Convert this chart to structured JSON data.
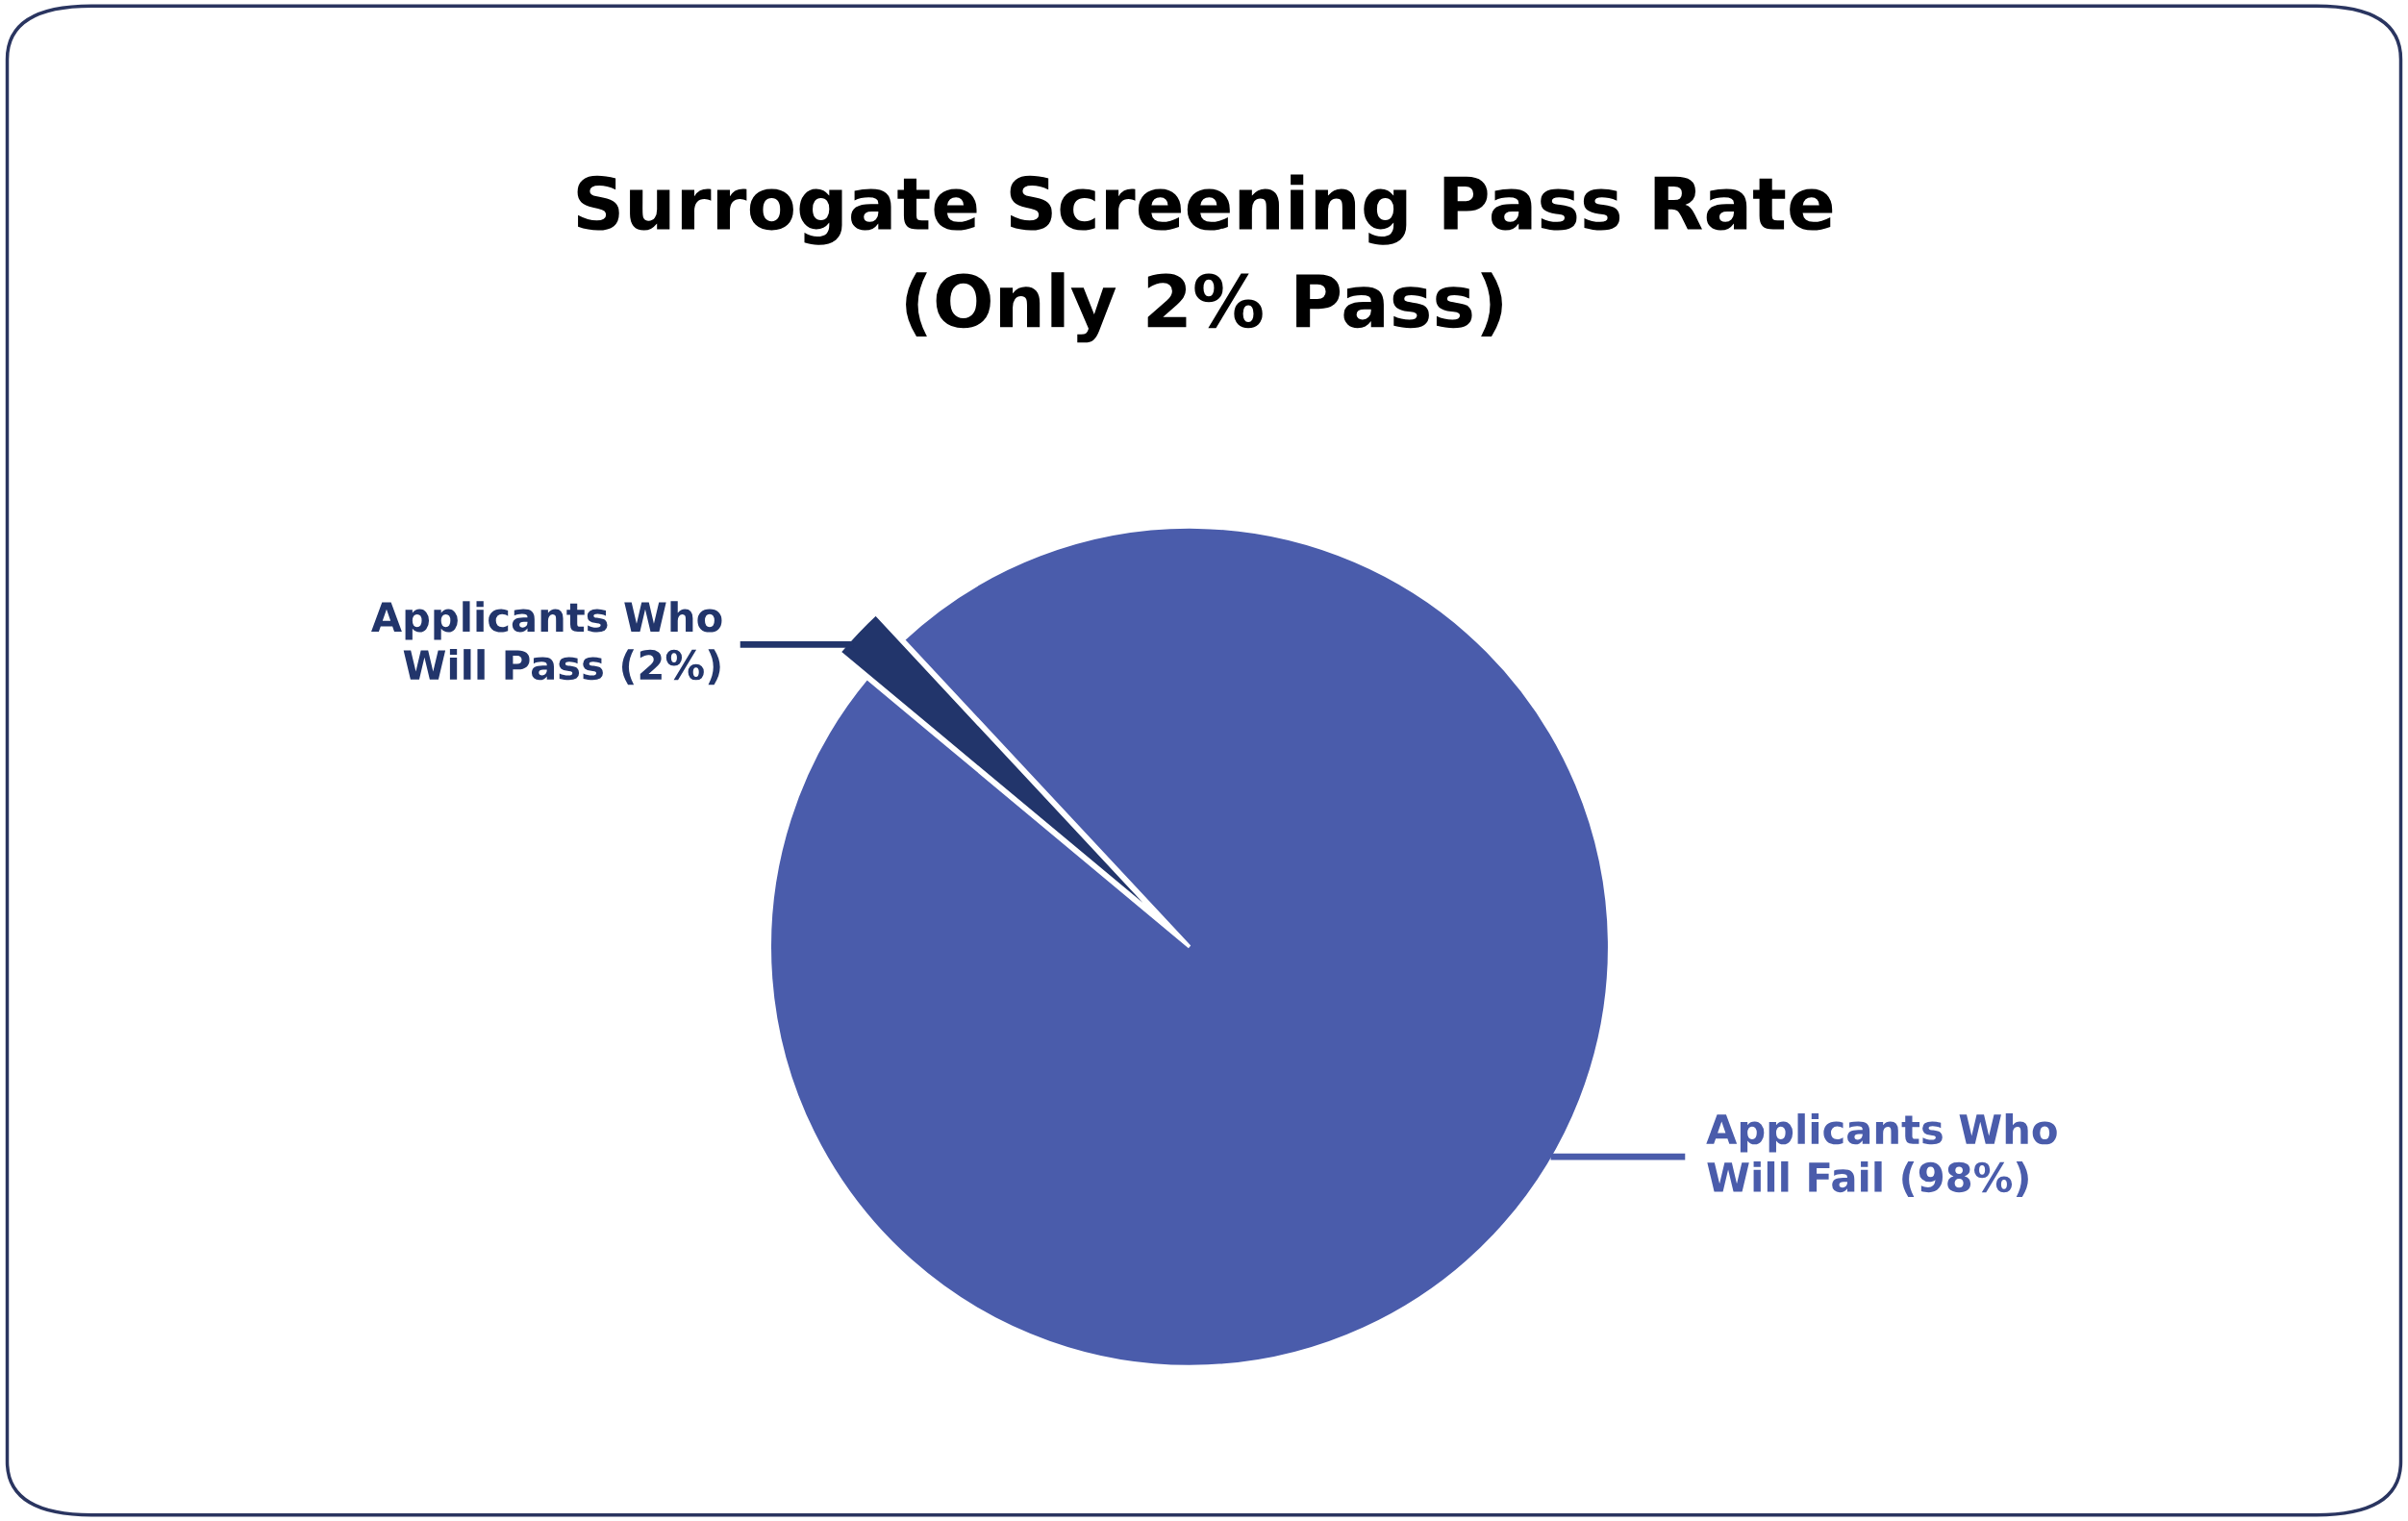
{
  "chart_data": {
    "type": "pie",
    "title": "Surrogate Screening Pass Rate\n(Only 2% Pass)",
    "categories": [
      "Applicants Who Will Pass (2%)",
      "Applicants Who Will Fail (98%)"
    ],
    "values": [
      2,
      98
    ],
    "colors": [
      "#22356b",
      "#4a5cab"
    ]
  }
}
